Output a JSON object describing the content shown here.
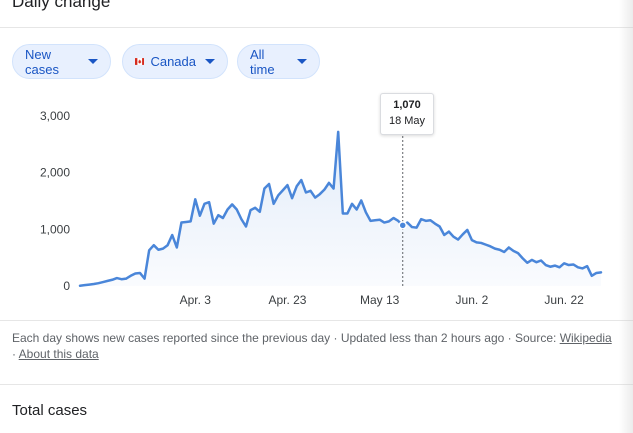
{
  "header": {
    "title": "Daily change"
  },
  "filters": {
    "metric_label": "New cases",
    "country_label": "Canada",
    "range_label": "All time"
  },
  "tooltip": {
    "value": "1,070",
    "date": "18 May"
  },
  "footer": {
    "description": "Each day shows new cases reported since the previous day · Updated less than 2 hours ago",
    "separator": "·",
    "source_prefix": "Source:",
    "source_link": "Wikipedia",
    "about_link": "About this data"
  },
  "section2": {
    "title": "Total cases"
  },
  "colors": {
    "line": "#4a86d9",
    "chip_bg": "#e8f0fe",
    "chip_text": "#1a56c4"
  },
  "chart_data": {
    "type": "line",
    "title": "",
    "xlabel": "",
    "ylabel": "",
    "ylim": [
      0,
      3000
    ],
    "yticks": [
      {
        "value": 0,
        "label": "0"
      },
      {
        "value": 1000,
        "label": "1,000"
      },
      {
        "value": 2000,
        "label": "2,000"
      },
      {
        "value": 3000,
        "label": "3,000"
      }
    ],
    "xticks": [
      {
        "index": 25,
        "label": "Apr. 3"
      },
      {
        "index": 45,
        "label": "Apr. 23"
      },
      {
        "index": 65,
        "label": "May 13"
      },
      {
        "index": 85,
        "label": "Jun. 2"
      },
      {
        "index": 105,
        "label": "Jun. 22"
      }
    ],
    "grid": false,
    "highlight_index": 70,
    "series": [
      {
        "values": [
          5,
          15,
          25,
          35,
          50,
          70,
          90,
          110,
          140,
          120,
          130,
          180,
          220,
          230,
          130,
          630,
          720,
          640,
          660,
          720,
          900,
          680,
          1120,
          1130,
          1140,
          1530,
          1240,
          1450,
          1480,
          1100,
          1250,
          1200,
          1350,
          1440,
          1350,
          1180,
          1050,
          1340,
          1380,
          1310,
          1720,
          1800,
          1450,
          1600,
          1690,
          1780,
          1550,
          1760,
          1870,
          1650,
          1680,
          1560,
          1620,
          1700,
          1820,
          1720,
          2720,
          1280,
          1280,
          1450,
          1350,
          1510,
          1300,
          1150,
          1160,
          1170,
          1120,
          1140,
          1200,
          1150,
          1070,
          1120,
          1040,
          1030,
          1180,
          1150,
          1160,
          1100,
          1050,
          900,
          960,
          870,
          820,
          910,
          990,
          810,
          770,
          760,
          730,
          700,
          660,
          640,
          600,
          680,
          620,
          580,
          490,
          410,
          460,
          420,
          450,
          370,
          340,
          360,
          330,
          400,
          370,
          380,
          330,
          310,
          350,
          180,
          230,
          240
        ]
      }
    ]
  }
}
